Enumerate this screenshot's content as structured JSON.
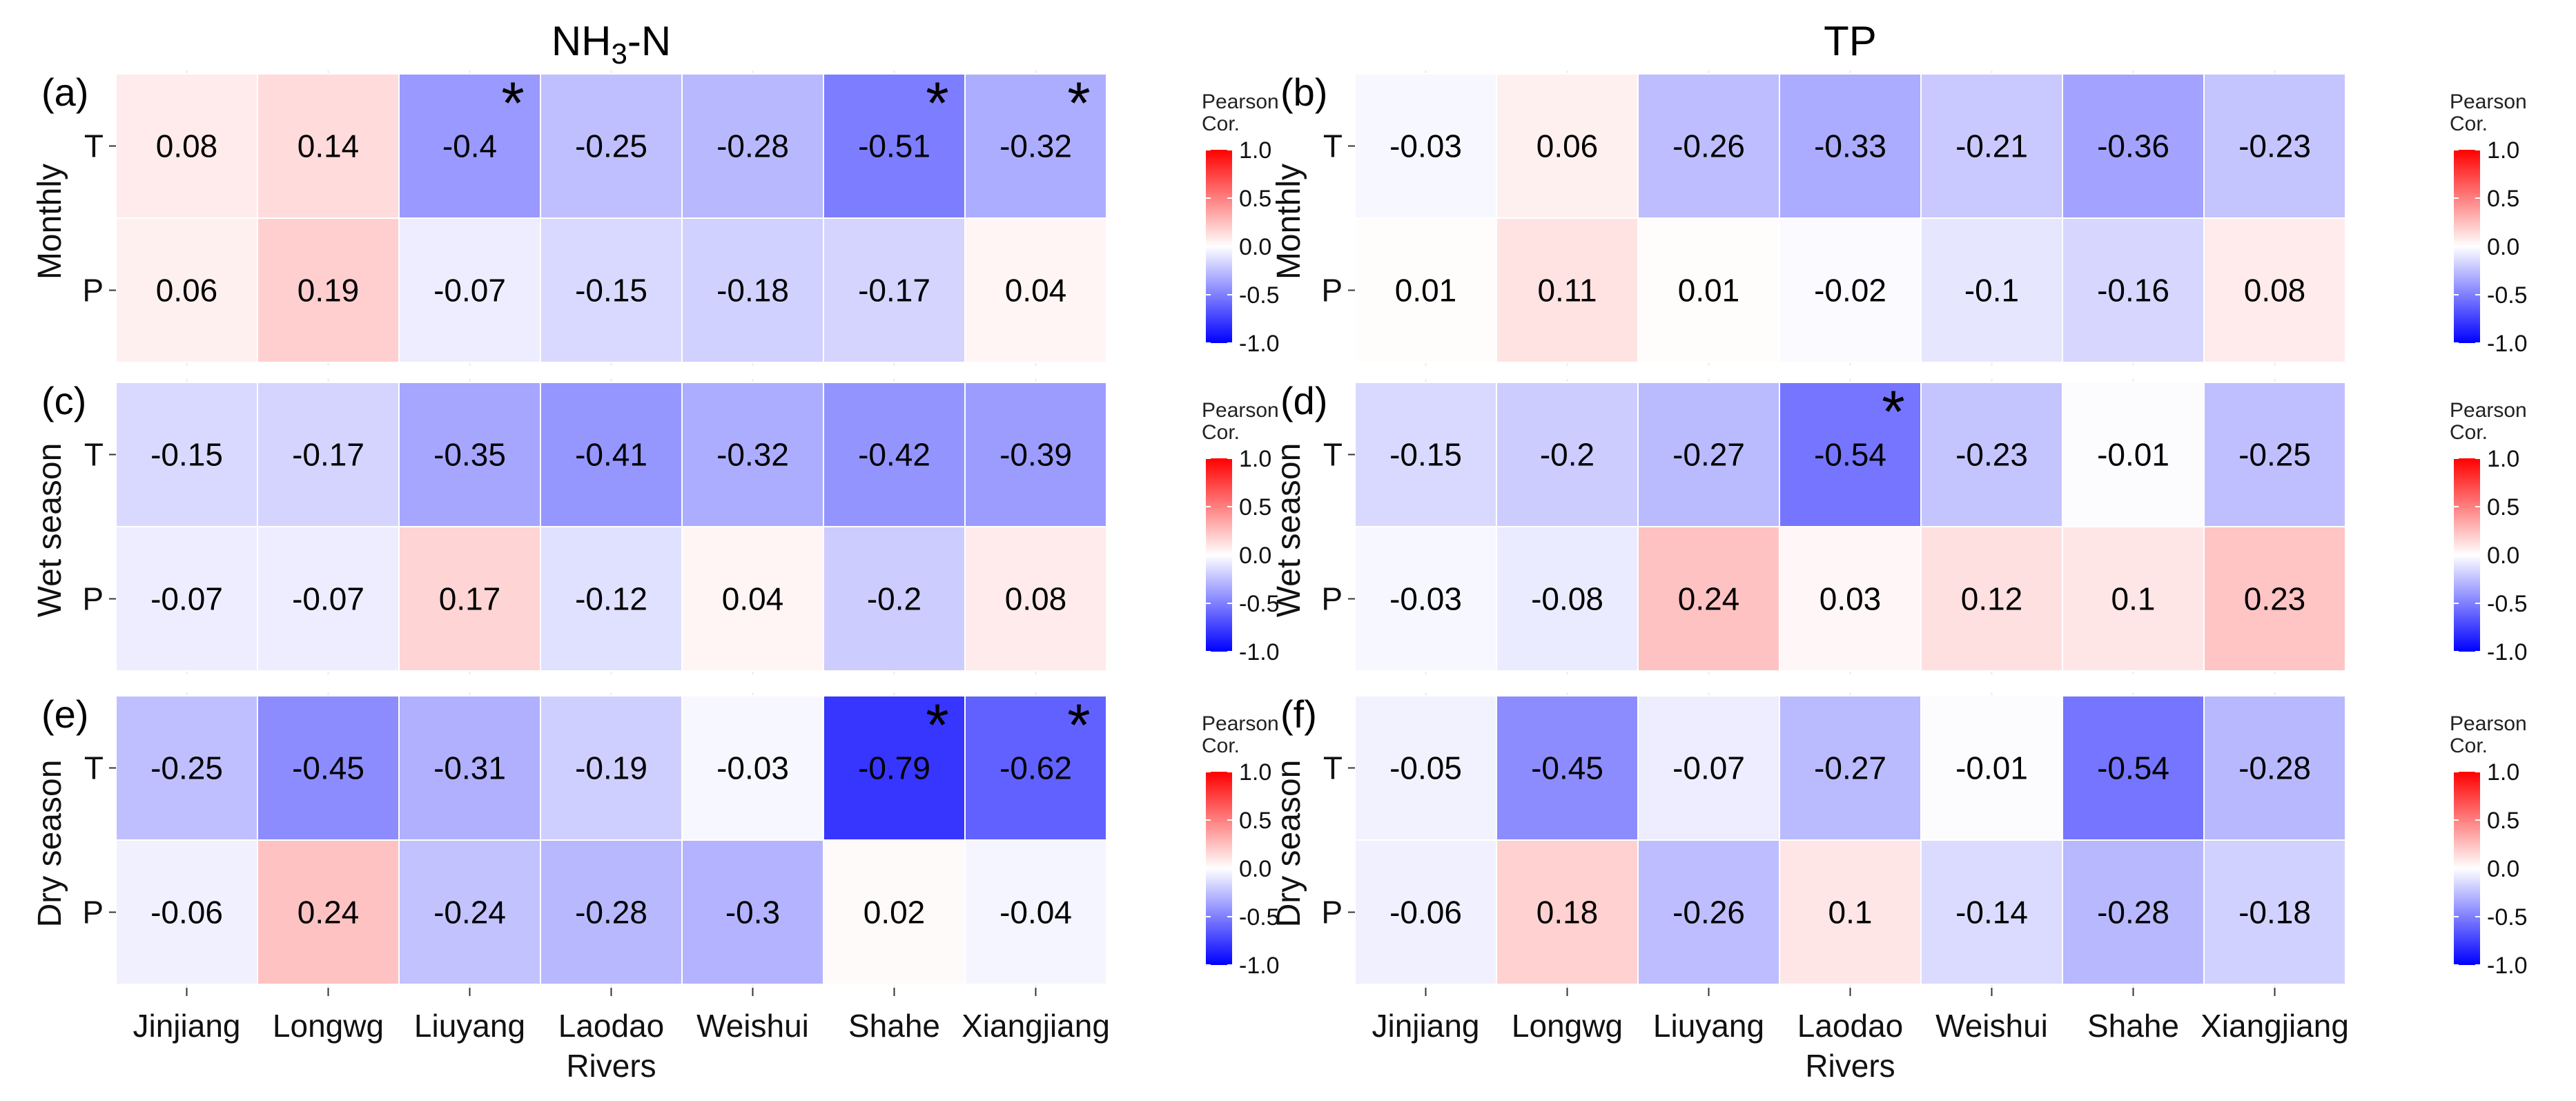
{
  "chart_data": {
    "type": "heatmap",
    "titles": [
      "NH3-N",
      "TP"
    ],
    "title_parts": [
      {
        "main": "NH",
        "sub": "3",
        "tail": "-N"
      },
      {
        "main": "TP",
        "sub": "",
        "tail": ""
      }
    ],
    "xlabel": "Rivers",
    "x_categories": [
      "Jinjiang",
      "Longwg",
      "Liuyang",
      "Laodao",
      "Weishui",
      "Shahe",
      "Xiangjiang"
    ],
    "row_variables": [
      "T",
      "P"
    ],
    "color_scale": {
      "title_line1": "Pearson",
      "title_line2": "Cor.",
      "min": -1.0,
      "max": 1.0,
      "low_color": "#0000ff",
      "mid_color": "#ffffff",
      "high_color": "#ff0000",
      "ticks": [
        "1.0",
        "0.5",
        "0.0",
        "-0.5",
        "-1.0"
      ],
      "tick_values": [
        1.0,
        0.5,
        0.0,
        -0.5,
        -1.0
      ]
    },
    "panels": [
      {
        "letter": "(a)",
        "pollutant": "NH3-N",
        "period": "Monthly",
        "labels": {
          "T": [
            "0.08",
            "0.14",
            "-0.4",
            "-0.25",
            "-0.28",
            "-0.51",
            "-0.32"
          ],
          "P": [
            "0.06",
            "0.19",
            "-0.07",
            "-0.15",
            "-0.18",
            "-0.17",
            "0.04"
          ]
        },
        "values": {
          "T": [
            0.08,
            0.14,
            -0.4,
            -0.25,
            -0.28,
            -0.51,
            -0.32
          ],
          "P": [
            0.06,
            0.19,
            -0.07,
            -0.15,
            -0.18,
            -0.17,
            0.04
          ]
        },
        "significant": {
          "T": [
            false,
            false,
            true,
            false,
            false,
            true,
            true
          ],
          "P": [
            false,
            false,
            false,
            false,
            false,
            false,
            false
          ]
        }
      },
      {
        "letter": "(b)",
        "pollutant": "TP",
        "period": "Monthly",
        "labels": {
          "T": [
            "-0.03",
            "0.06",
            "-0.26",
            "-0.33",
            "-0.21",
            "-0.36",
            "-0.23"
          ],
          "P": [
            "0.01",
            "0.11",
            "0.01",
            "-0.02",
            "-0.1",
            "-0.16",
            "0.08"
          ]
        },
        "values": {
          "T": [
            -0.03,
            0.06,
            -0.26,
            -0.33,
            -0.21,
            -0.36,
            -0.23
          ],
          "P": [
            0.01,
            0.11,
            0.01,
            -0.02,
            -0.1,
            -0.16,
            0.08
          ]
        },
        "significant": {
          "T": [
            false,
            false,
            false,
            false,
            false,
            false,
            false
          ],
          "P": [
            false,
            false,
            false,
            false,
            false,
            false,
            false
          ]
        }
      },
      {
        "letter": "(c)",
        "pollutant": "NH3-N",
        "period": "Wet season",
        "labels": {
          "T": [
            "-0.15",
            "-0.17",
            "-0.35",
            "-0.41",
            "-0.32",
            "-0.42",
            "-0.39"
          ],
          "P": [
            "-0.07",
            "-0.07",
            "0.17",
            "-0.12",
            "0.04",
            "-0.2",
            "0.08"
          ]
        },
        "values": {
          "T": [
            -0.15,
            -0.17,
            -0.35,
            -0.41,
            -0.32,
            -0.42,
            -0.39
          ],
          "P": [
            -0.07,
            -0.07,
            0.17,
            -0.12,
            0.04,
            -0.2,
            0.08
          ]
        },
        "significant": {
          "T": [
            false,
            false,
            false,
            false,
            false,
            false,
            false
          ],
          "P": [
            false,
            false,
            false,
            false,
            false,
            false,
            false
          ]
        }
      },
      {
        "letter": "(d)",
        "pollutant": "TP",
        "period": "Wet season",
        "labels": {
          "T": [
            "-0.15",
            "-0.2",
            "-0.27",
            "-0.54",
            "-0.23",
            "-0.01",
            "-0.25"
          ],
          "P": [
            "-0.03",
            "-0.08",
            "0.24",
            "0.03",
            "0.12",
            "0.1",
            "0.23"
          ]
        },
        "values": {
          "T": [
            -0.15,
            -0.2,
            -0.27,
            -0.54,
            -0.23,
            -0.01,
            -0.25
          ],
          "P": [
            -0.03,
            -0.08,
            0.24,
            0.03,
            0.12,
            0.1,
            0.23
          ]
        },
        "significant": {
          "T": [
            false,
            false,
            false,
            true,
            false,
            false,
            false
          ],
          "P": [
            false,
            false,
            false,
            false,
            false,
            false,
            false
          ]
        }
      },
      {
        "letter": "(e)",
        "pollutant": "NH3-N",
        "period": "Dry season",
        "labels": {
          "T": [
            "-0.25",
            "-0.45",
            "-0.31",
            "-0.19",
            "-0.03",
            "-0.79",
            "-0.62"
          ],
          "P": [
            "-0.06",
            "0.24",
            "-0.24",
            "-0.28",
            "-0.3",
            "0.02",
            "-0.04"
          ]
        },
        "values": {
          "T": [
            -0.25,
            -0.45,
            -0.31,
            -0.19,
            -0.03,
            -0.79,
            -0.62
          ],
          "P": [
            -0.06,
            0.24,
            -0.24,
            -0.28,
            -0.3,
            0.02,
            -0.04
          ]
        },
        "significant": {
          "T": [
            false,
            false,
            false,
            false,
            false,
            true,
            true
          ],
          "P": [
            false,
            false,
            false,
            false,
            false,
            false,
            false
          ]
        }
      },
      {
        "letter": "(f)",
        "pollutant": "TP",
        "period": "Dry season",
        "labels": {
          "T": [
            "-0.05",
            "-0.45",
            "-0.07",
            "-0.27",
            "-0.01",
            "-0.54",
            "-0.28"
          ],
          "P": [
            "-0.06",
            "0.18",
            "-0.26",
            "0.1",
            "-0.14",
            "-0.28",
            "-0.18"
          ]
        },
        "values": {
          "T": [
            -0.05,
            -0.45,
            -0.07,
            -0.27,
            -0.01,
            -0.54,
            -0.28
          ],
          "P": [
            -0.06,
            0.18,
            -0.26,
            0.1,
            -0.14,
            -0.28,
            -0.18
          ]
        },
        "significant": {
          "T": [
            false,
            false,
            false,
            false,
            false,
            false,
            false
          ],
          "P": [
            false,
            false,
            false,
            false,
            false,
            false,
            false
          ]
        }
      }
    ],
    "significance_marker": "*"
  }
}
